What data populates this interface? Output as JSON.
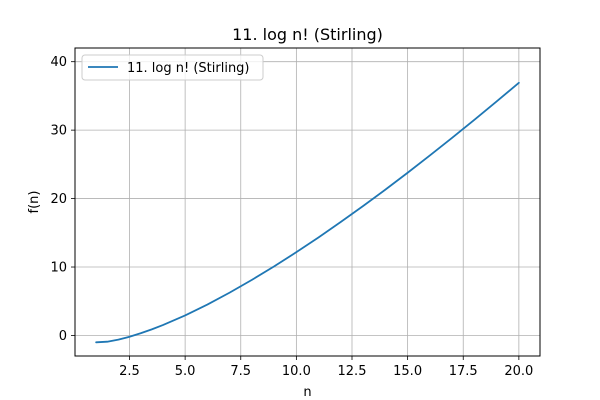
{
  "chart_data": {
    "type": "line",
    "title": "11. log n! (Stirling)",
    "xlabel": "n",
    "ylabel": "f(n)",
    "xlim": [
      0.05,
      20.95
    ],
    "ylim": [
      -3.0,
      42.0
    ],
    "xticks": [
      2.5,
      5.0,
      7.5,
      10.0,
      12.5,
      15.0,
      17.5,
      20.0
    ],
    "xtick_labels": [
      "2.5",
      "5.0",
      "7.5",
      "10.0",
      "12.5",
      "15.0",
      "17.5",
      "20.0"
    ],
    "yticks": [
      0,
      10,
      20,
      30,
      40
    ],
    "ytick_labels": [
      "0",
      "10",
      "20",
      "30",
      "40"
    ],
    "grid": true,
    "legend": {
      "position": "top-left",
      "entries": [
        "11. log n! (Stirling)"
      ]
    },
    "series": [
      {
        "name": "11. log n! (Stirling)",
        "color": "#1f77b4",
        "x": [
          1.0,
          1.5,
          2.0,
          2.5,
          3.0,
          3.5,
          4.0,
          5.0,
          6.0,
          7.0,
          8.0,
          9.0,
          10.0,
          11.0,
          12.0,
          13.0,
          14.0,
          15.0,
          16.0,
          17.0,
          18.0,
          19.0,
          20.0
        ],
        "y": [
          -1.0,
          -0.91,
          -0.61,
          -0.19,
          0.32,
          0.89,
          1.52,
          2.93,
          4.52,
          6.26,
          8.12,
          10.09,
          12.17,
          14.34,
          16.59,
          18.91,
          21.31,
          23.77,
          26.3,
          28.88,
          31.51,
          34.19,
          36.92
        ]
      }
    ]
  }
}
